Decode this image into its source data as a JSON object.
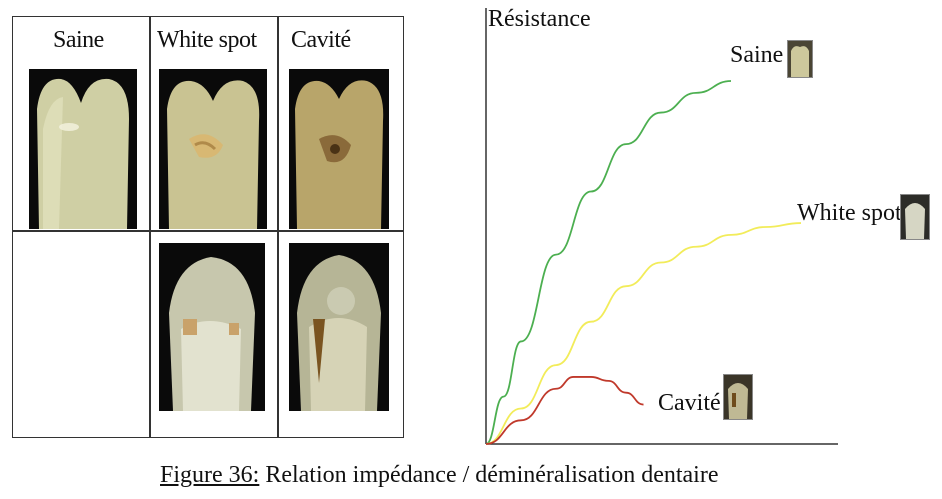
{
  "grid": {
    "headers": [
      "Saine",
      "White spot",
      "Cavité"
    ]
  },
  "chart_data": {
    "type": "line",
    "ylabel": "Résistance",
    "xlabel": "",
    "series": [
      {
        "name": "Saine",
        "color": "#4caf50",
        "x": [
          0,
          5,
          10,
          20,
          30,
          40,
          50,
          60,
          70
        ],
        "y": [
          0,
          12,
          26,
          48,
          64,
          76,
          84,
          89,
          92
        ]
      },
      {
        "name": "White spot",
        "color": "#f2ec5a",
        "x": [
          0,
          10,
          20,
          30,
          40,
          50,
          60,
          70,
          80,
          90
        ],
        "y": [
          0,
          9,
          20,
          31,
          40,
          46,
          50,
          53,
          55,
          56
        ]
      },
      {
        "name": "Cavité",
        "color": "#c0392b",
        "x": [
          0,
          10,
          20,
          25,
          30,
          35,
          40,
          45
        ],
        "y": [
          0,
          6,
          14,
          17,
          17,
          16,
          13,
          10
        ]
      }
    ],
    "xlim": [
      0,
      100
    ],
    "ylim": [
      0,
      110
    ]
  },
  "caption": {
    "figure_label": "Figure 36:",
    "text": " Relation impédance / déminéralisation dentaire"
  }
}
